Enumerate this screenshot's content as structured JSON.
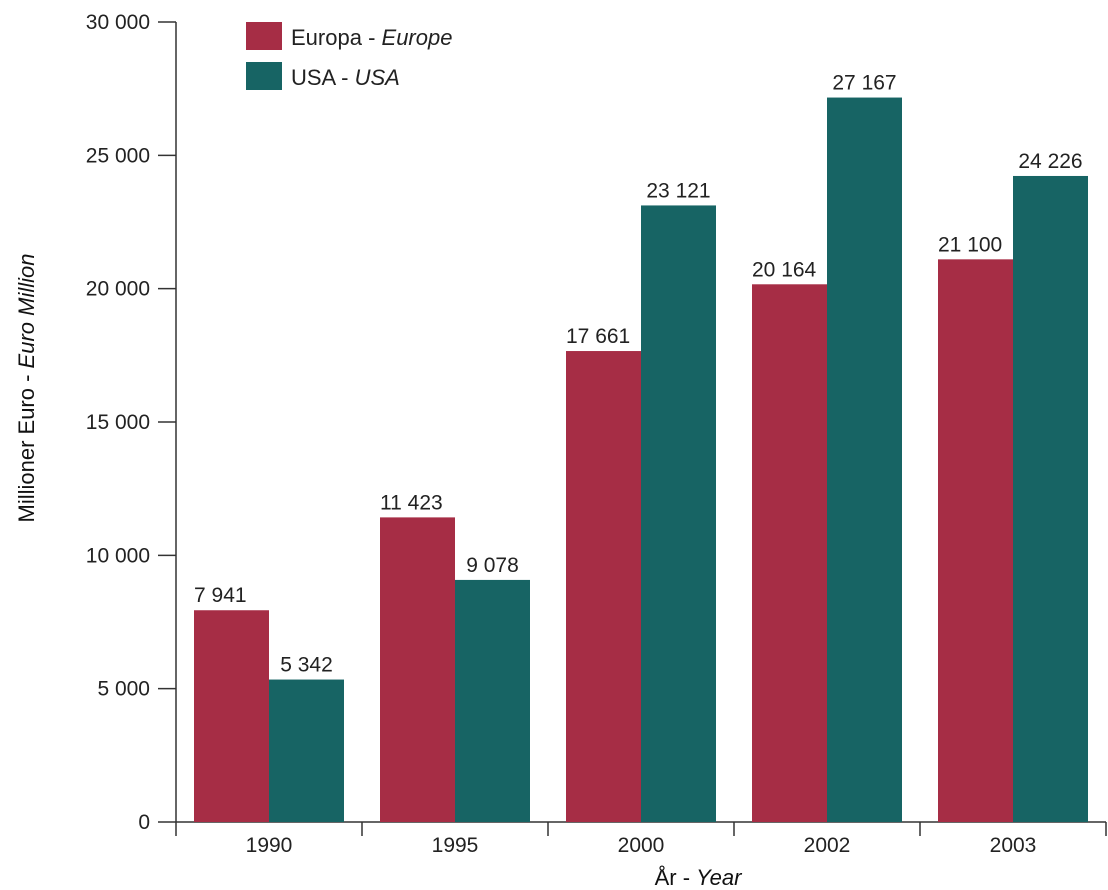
{
  "chart_data": {
    "type": "bar",
    "categories": [
      "1990",
      "1995",
      "2000",
      "2002",
      "2003"
    ],
    "series": [
      {
        "name": "Europa",
        "name_en": "Europe",
        "color": "#a62d45",
        "values": [
          7941,
          11423,
          17661,
          20164,
          21100
        ],
        "labels": [
          "7 941",
          "11 423",
          "17 661",
          "20 164",
          "21 100"
        ]
      },
      {
        "name": "USA",
        "name_en": "USA",
        "color": "#176464",
        "values": [
          5342,
          9078,
          23121,
          27167,
          24226
        ],
        "labels": [
          "5 342",
          "9 078",
          "23 121",
          "27 167",
          "24 226"
        ]
      }
    ],
    "xlabel": "År",
    "xlabel_en": "Year",
    "ylabel": "Millioner Euro",
    "ylabel_en": "Euro Million",
    "ylim": [
      0,
      30000
    ],
    "yticks": [
      0,
      5000,
      10000,
      15000,
      20000,
      25000,
      30000
    ],
    "ytick_labels": [
      "0",
      "5 000",
      "10 000",
      "15 000",
      "20 000",
      "25 000",
      "30 000"
    ],
    "grid": false,
    "legend_position": "top-left",
    "legend_separator": " - "
  }
}
